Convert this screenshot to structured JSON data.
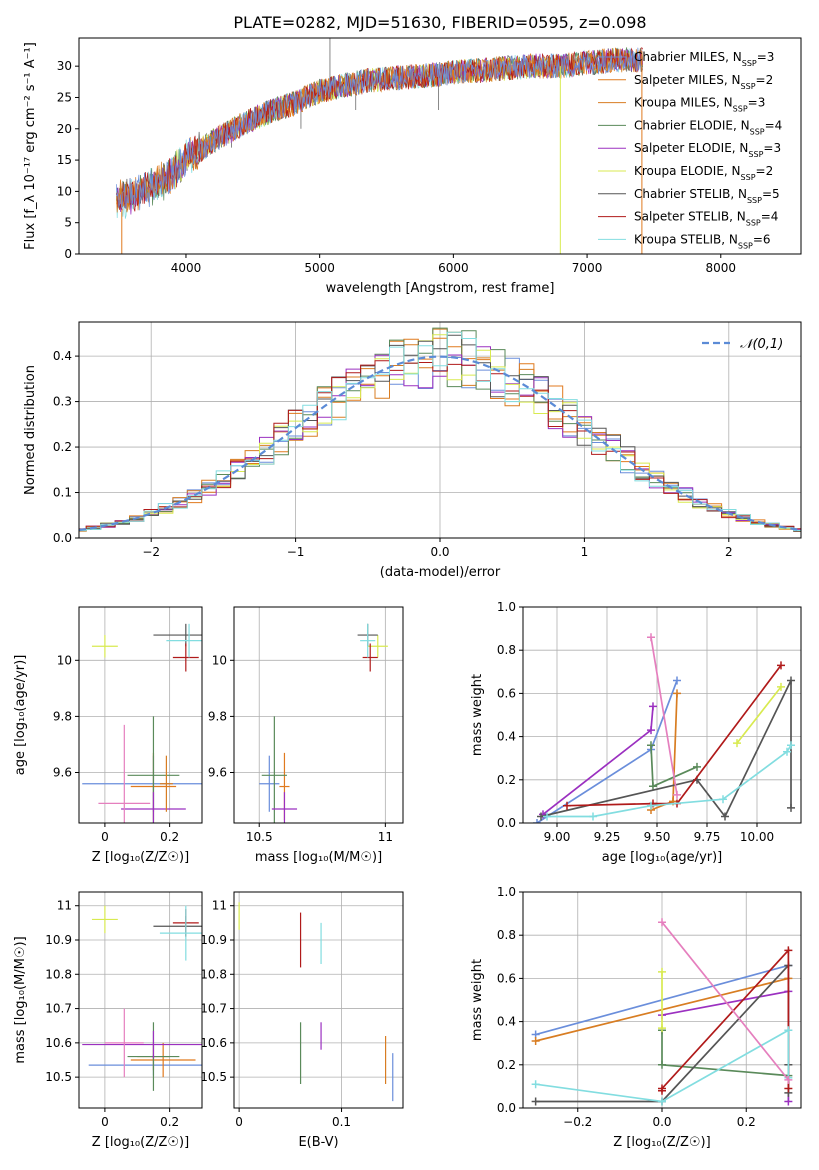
{
  "figure": {
    "title": "PLATE=0282, MJD=51630, FIBERID=0595, z=0.098"
  },
  "series": [
    {
      "name": "Chabrier MILES",
      "nssp": "3",
      "color": "#6a8edb"
    },
    {
      "name": "Salpeter MILES",
      "nssp": "2",
      "color": "#e07a1f"
    },
    {
      "name": "Kroupa MILES",
      "nssp": "3",
      "color": "#d87d22"
    },
    {
      "name": "Chabrier ELODIE",
      "nssp": "4",
      "color": "#5a8a5a"
    },
    {
      "name": "Salpeter ELODIE",
      "nssp": "3",
      "color": "#9b30c0"
    },
    {
      "name": "Kroupa ELODIE",
      "nssp": "2",
      "color": "#d8ea50"
    },
    {
      "name": "Chabrier STELIB",
      "nssp": "5",
      "color": "#555555"
    },
    {
      "name": "Salpeter STELIB",
      "nssp": "4",
      "color": "#b01a1a"
    },
    {
      "name": "Kroupa STELIB",
      "nssp": "6",
      "color": "#82dde0"
    }
  ],
  "chart_data": [
    {
      "id": "spectrum",
      "type": "line",
      "xlabel": "wavelength [Angstrom, rest frame]",
      "ylabel": "Flux [f_λ 10⁻¹⁷ erg cm⁻² s⁻¹ A⁻¹]",
      "xlim": [
        3200,
        8600
      ],
      "ylim": [
        0,
        34.5
      ],
      "xticks": [
        4000,
        5000,
        6000,
        7000,
        8000
      ],
      "yticks": [
        0,
        5,
        10,
        15,
        20,
        25,
        30
      ],
      "data_range": [
        3480,
        7420
      ],
      "shape": [
        [
          3480,
          8.5
        ],
        [
          3700,
          10.5
        ],
        [
          3850,
          12
        ],
        [
          4000,
          15
        ],
        [
          4200,
          18
        ],
        [
          4400,
          20.5
        ],
        [
          4600,
          22.5
        ],
        [
          4800,
          24
        ],
        [
          5000,
          26
        ],
        [
          5200,
          27
        ],
        [
          5400,
          27.8
        ],
        [
          5600,
          28.2
        ],
        [
          5800,
          28.5
        ],
        [
          6000,
          29
        ],
        [
          6200,
          29.3
        ],
        [
          6400,
          29.7
        ],
        [
          6600,
          30
        ],
        [
          6800,
          30
        ],
        [
          7000,
          30.5
        ],
        [
          7200,
          31
        ],
        [
          7420,
          31
        ]
      ],
      "spikes": [
        [
          5077,
          34.5
        ],
        [
          5270,
          23
        ],
        [
          4340,
          17
        ],
        [
          4860,
          20
        ],
        [
          5890,
          23
        ]
      ],
      "grid": false,
      "legend": "upper right"
    },
    {
      "id": "residuals",
      "type": "histogram",
      "xlabel": "(data-model)/error",
      "ylabel": "Normed distribution",
      "xlim": [
        -2.5,
        2.5
      ],
      "ylim": [
        0,
        0.475
      ],
      "xticks": [
        -2,
        -1,
        0,
        1,
        2
      ],
      "yticks": [
        0.0,
        0.1,
        0.2,
        0.3,
        0.4
      ],
      "bin_width": 0.1,
      "reference": {
        "name": "𝒩(0,1)",
        "mu": 0,
        "sigma": 1,
        "color": "#5b8bd6"
      },
      "grid": true,
      "legend": "upper right"
    },
    {
      "id": "age-vs-Z",
      "type": "scatter",
      "xlabel": "Z [log₁₀(Z/Z☉)]",
      "ylabel": "age  [log₁₀(age/yr)]",
      "xlim": [
        -0.08,
        0.3
      ],
      "ylim": [
        9.42,
        10.19
      ],
      "xticks": [
        0.0,
        0.2
      ],
      "yticks": [
        9.6,
        9.8,
        10.0
      ],
      "grid": true,
      "points": [
        {
          "s": 0,
          "x": 0.15,
          "y": 9.56,
          "ex": 0.22,
          "ey": 0.1
        },
        {
          "s": 1,
          "x": 0.15,
          "y": 9.55,
          "ex": 0.07,
          "ey": 0.12
        },
        {
          "s": 5,
          "x": 0.0,
          "y": 10.05,
          "ex": 0.04,
          "ey": 0.04
        },
        {
          "s": 3,
          "x": 0.15,
          "y": 9.59,
          "ex": 0.08,
          "ey": 0.21
        },
        {
          "s": 4,
          "x": 0.15,
          "y": 9.47,
          "ex": 0.1,
          "ey": 0.06
        },
        {
          "s": 6,
          "x": 0.25,
          "y": 10.09,
          "ex": 0.1,
          "ey": 0.04
        },
        {
          "s": 7,
          "x": 0.25,
          "y": 10.01,
          "ex": 0.04,
          "ey": 0.05
        },
        {
          "s": 8,
          "x": 0.26,
          "y": 10.07,
          "ex": 0.07,
          "ey": 0.06
        },
        {
          "s": 2,
          "x": 0.19,
          "y": 9.56,
          "ex": 0.02,
          "ey": 0.1
        },
        {
          "s": 4,
          "x": 0.06,
          "y": 9.49,
          "ex": 0.08,
          "ey": 0.28,
          "color": "#e57fbe"
        }
      ]
    },
    {
      "id": "age-vs-mass",
      "type": "scatter",
      "xlabel": "mass [log₁₀(M/M☉)]",
      "ylabel": "",
      "xlim": [
        10.4,
        11.07
      ],
      "ylim": [
        9.42,
        10.19
      ],
      "xticks": [
        10.5,
        11.0
      ],
      "yticks": [
        9.6,
        9.8,
        10.0
      ],
      "grid": true,
      "points": [
        {
          "s": 0,
          "x": 10.54,
          "y": 9.56,
          "ex": 0.04,
          "ey": 0.1
        },
        {
          "s": 1,
          "x": 10.6,
          "y": 9.55,
          "ex": 0.02,
          "ey": 0.12
        },
        {
          "s": 3,
          "x": 10.56,
          "y": 9.59,
          "ex": 0.05,
          "ey": 0.21
        },
        {
          "s": 4,
          "x": 10.6,
          "y": 9.47,
          "ex": 0.05,
          "ey": 0.06
        },
        {
          "s": 5,
          "x": 10.97,
          "y": 10.05,
          "ex": 0.04,
          "ey": 0.04
        },
        {
          "s": 6,
          "x": 10.93,
          "y": 10.09,
          "ex": 0.04,
          "ey": 0.04
        },
        {
          "s": 7,
          "x": 10.94,
          "y": 10.01,
          "ex": 0.03,
          "ey": 0.05
        },
        {
          "s": 8,
          "x": 10.93,
          "y": 10.07,
          "ex": 0.03,
          "ey": 0.06
        }
      ]
    },
    {
      "id": "weight-vs-age",
      "type": "line",
      "xlabel": "age  [log₁₀(age/yr)]",
      "ylabel": "mass weight",
      "xlim": [
        8.83,
        10.22
      ],
      "ylim": [
        0,
        1.0
      ],
      "xticks": [
        9.0,
        9.25,
        9.5,
        9.75,
        10.0
      ],
      "yticks": [
        0.0,
        0.2,
        0.4,
        0.6,
        0.8,
        1.0
      ],
      "grid": true,
      "lines": [
        {
          "s": 0,
          "x": [
            8.9,
            9.47,
            9.6
          ],
          "y": [
            0.0,
            0.34,
            0.66
          ]
        },
        {
          "s": 2,
          "x": [
            9.47,
            9.58,
            9.6
          ],
          "y": [
            0.06,
            0.1,
            0.6
          ]
        },
        {
          "s": 3,
          "x": [
            9.47,
            9.48,
            9.7
          ],
          "y": [
            0.36,
            0.17,
            0.26
          ]
        },
        {
          "s": 4,
          "x": [
            8.93,
            9.47,
            9.48
          ],
          "y": [
            0.04,
            0.43,
            0.54
          ]
        },
        {
          "s": 5,
          "x": [
            9.9,
            10.12
          ],
          "y": [
            0.37,
            0.63
          ]
        },
        {
          "s": 6,
          "x": [
            8.92,
            9.7,
            9.84,
            10.17,
            10.17
          ],
          "y": [
            0.03,
            0.2,
            0.03,
            0.66,
            0.07
          ]
        },
        {
          "s": 7,
          "x": [
            9.05,
            9.48,
            9.6,
            10.12
          ],
          "y": [
            0.08,
            0.09,
            0.09,
            0.73
          ]
        },
        {
          "s": 8,
          "x": [
            8.95,
            9.18,
            9.47,
            9.83,
            10.15,
            10.17
          ],
          "y": [
            0.03,
            0.03,
            0.08,
            0.11,
            0.33,
            0.36
          ]
        },
        {
          "s": 4,
          "x": [
            9.47,
            9.6
          ],
          "y": [
            0.86,
            0.13
          ],
          "color": "#e57fbe"
        }
      ]
    },
    {
      "id": "mass-vs-Z",
      "type": "scatter",
      "xlabel": "Z [log₁₀(Z/Z☉)]",
      "ylabel": "mass [log₁₀(M/M☉)]",
      "xlim": [
        -0.08,
        0.3
      ],
      "ylim": [
        10.41,
        11.04
      ],
      "xticks": [
        0.0,
        0.2
      ],
      "yticks": [
        10.5,
        10.6,
        10.7,
        10.8,
        10.9,
        11.0
      ],
      "grid": true,
      "points": [
        {
          "s": 0,
          "x": 0.15,
          "y": 10.535,
          "ex": 0.2,
          "ey": 0.03
        },
        {
          "s": 1,
          "x": 0.18,
          "y": 10.55,
          "ex": 0.1,
          "ey": 0.05
        },
        {
          "s": 2,
          "x": 0.15,
          "y": 10.56,
          "ex": 0.05,
          "ey": 0.04
        },
        {
          "s": 3,
          "x": 0.15,
          "y": 10.56,
          "ex": 0.08,
          "ey": 0.1
        },
        {
          "s": 4,
          "x": 0.15,
          "y": 10.595,
          "ex": 0.22,
          "ey": 0.04
        },
        {
          "s": 5,
          "x": 0.0,
          "y": 10.96,
          "ex": 0.04,
          "ey": 0.04
        },
        {
          "s": 6,
          "x": 0.25,
          "y": 10.94,
          "ex": 0.1,
          "ey": 0.03
        },
        {
          "s": 7,
          "x": 0.25,
          "y": 10.95,
          "ex": 0.04,
          "ey": 0.04
        },
        {
          "s": 8,
          "x": 0.25,
          "y": 10.92,
          "ex": 0.08,
          "ey": 0.08
        },
        {
          "s": 4,
          "x": 0.06,
          "y": 10.6,
          "ex": 0.06,
          "ey": 0.1,
          "color": "#e57fbe"
        }
      ]
    },
    {
      "id": "mass-vs-ebv",
      "type": "scatter",
      "xlabel": "E(B-V)",
      "ylabel": "",
      "xlim": [
        -0.005,
        0.16
      ],
      "ylim": [
        10.41,
        11.04
      ],
      "xticks": [
        0.0,
        0.1
      ],
      "yticks": [
        10.5,
        10.6,
        10.7,
        10.8,
        10.9,
        11.0
      ],
      "grid": true,
      "points": [
        {
          "s": 5,
          "x": 0.0,
          "y": 10.97,
          "ex": 0,
          "ey": 0.04
        },
        {
          "s": 7,
          "x": 0.06,
          "y": 10.9,
          "ex": 0,
          "ey": 0.08
        },
        {
          "s": 8,
          "x": 0.08,
          "y": 10.89,
          "ex": 0,
          "ey": 0.06
        },
        {
          "s": 3,
          "x": 0.06,
          "y": 10.57,
          "ex": 0,
          "ey": 0.09
        },
        {
          "s": 4,
          "x": 0.08,
          "y": 10.62,
          "ex": 0,
          "ey": 0.04
        },
        {
          "s": 2,
          "x": 0.143,
          "y": 10.55,
          "ex": 0,
          "ey": 0.07
        },
        {
          "s": 0,
          "x": 0.15,
          "y": 10.5,
          "ex": 0,
          "ey": 0.07
        }
      ]
    },
    {
      "id": "weight-vs-Z",
      "type": "line",
      "xlabel": "Z [log₁₀(Z/Z☉)]",
      "ylabel": "mass weight",
      "xlim": [
        -0.33,
        0.33
      ],
      "ylim": [
        0,
        1.0
      ],
      "xticks": [
        -0.2,
        0.0,
        0.2
      ],
      "yticks": [
        0.0,
        0.2,
        0.4,
        0.6,
        0.8,
        1.0
      ],
      "grid": true,
      "lines": [
        {
          "s": 0,
          "x": [
            -0.3,
            0.3
          ],
          "y": [
            0.34,
            0.66
          ]
        },
        {
          "s": 2,
          "x": [
            -0.3,
            0.3
          ],
          "y": [
            0.31,
            0.6
          ]
        },
        {
          "s": 3,
          "x": [
            0.0,
            0.0,
            0.3
          ],
          "y": [
            0.36,
            0.2,
            0.15
          ]
        },
        {
          "s": 4,
          "x": [
            0.0,
            0.3,
            0.3
          ],
          "y": [
            0.43,
            0.54,
            0.03
          ]
        },
        {
          "s": 5,
          "x": [
            0.0,
            0.0
          ],
          "y": [
            0.37,
            0.63
          ]
        },
        {
          "s": 6,
          "x": [
            -0.3,
            0.0,
            0.3,
            0.3,
            0.3
          ],
          "y": [
            0.03,
            0.03,
            0.66,
            0.2,
            0.07
          ]
        },
        {
          "s": 7,
          "x": [
            0.0,
            0.0,
            0.3,
            0.3
          ],
          "y": [
            0.08,
            0.09,
            0.73,
            0.09
          ]
        },
        {
          "s": 8,
          "x": [
            -0.3,
            0.0,
            0.3,
            0.3
          ],
          "y": [
            0.11,
            0.03,
            0.36,
            0.14
          ]
        },
        {
          "s": 4,
          "x": [
            0.0,
            0.3
          ],
          "y": [
            0.86,
            0.13
          ],
          "color": "#e57fbe"
        }
      ]
    }
  ]
}
